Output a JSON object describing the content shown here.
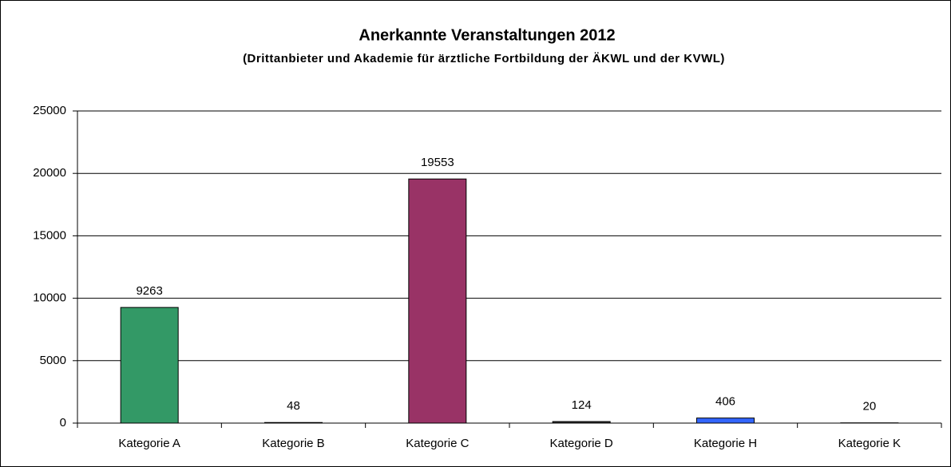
{
  "chart_data": {
    "type": "bar",
    "title": "Anerkannte Veranstaltungen 2012",
    "subtitle": "(Drittanbieter und Akademie für ärztliche Fortbildung der ÄKWL und der KVWL)",
    "categories": [
      "Kategorie A",
      "Kategorie B",
      "Kategorie C",
      "Kategorie D",
      "Kategorie H",
      "Kategorie K"
    ],
    "values": [
      9263,
      48,
      19553,
      124,
      406,
      20
    ],
    "colors": [
      "#339966",
      "#ffcc00",
      "#993366",
      "#333333",
      "#3366ff",
      "#c0c0c0"
    ],
    "ylim": [
      0,
      25000
    ],
    "yticks": [
      0,
      5000,
      10000,
      15000,
      20000,
      25000
    ],
    "grid": true
  }
}
